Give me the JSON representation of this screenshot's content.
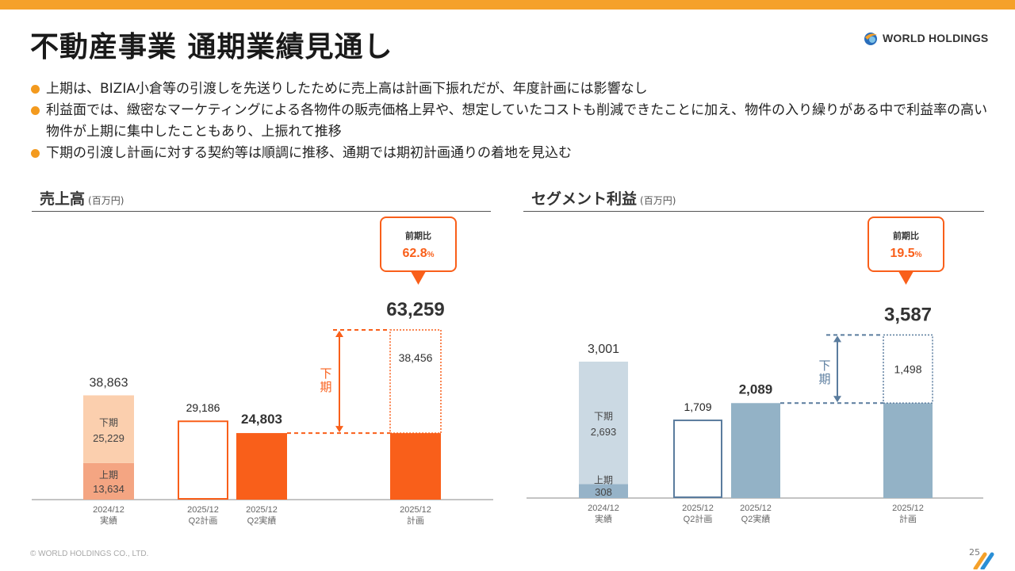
{
  "page": {
    "title": "不動産事業 通期業績見通し",
    "logo_text": "WORLD HOLDINGS",
    "footer": "© WORLD HOLDINGS CO., LTD.",
    "page_number": "25",
    "accent_color": "#f5a12a",
    "bullets": [
      "上期は、BIZIA小倉等の引渡しを先送りしたために売上高は計画下振れだが、年度計画には影響なし",
      "利益面では、緻密なマーケティングによる各物件の販売価格上昇や、想定していたコストも削減できたことに加え、物件の入り繰りがある中で利益率の高い物件が上期に集中したこともあり、上振れて推移",
      "下期の引渡し計画に対する契約等は順調に推移、通期では期初計画通りの着地を見込む"
    ]
  },
  "chart_data": [
    {
      "type": "bar",
      "title": "売上高",
      "unit": "(百万円)",
      "categories": [
        "2024/12\n実績",
        "2025/12\nQ2計画",
        "2025/12\nQ2実績",
        "2025/12\n計画"
      ],
      "segment_labels": {
        "h1": "上期",
        "h2": "下期"
      },
      "bars": [
        {
          "total": "38,863",
          "h1": 13634,
          "h1_label": "13,634",
          "h2": 25229,
          "h2_label": "25,229",
          "style": "stacked-orange"
        },
        {
          "total": "29,186",
          "value": 29186,
          "style": "outline"
        },
        {
          "total": "24,803",
          "value": 24803,
          "style": "solid"
        },
        {
          "total": "63,259",
          "h1": 24803,
          "h2": 38456,
          "h2_label": "38,456",
          "style": "plan"
        }
      ],
      "bracket_label": "下\n期",
      "callout": {
        "label": "前期比",
        "value": "62.8",
        "suffix": "%"
      },
      "colors": {
        "h1": "#f4a582",
        "h2": "#fbcfae",
        "solid": "#f95f1a",
        "accent": "#f95f1a"
      }
    },
    {
      "type": "bar",
      "title": "セグメント利益",
      "unit": "(百万円)",
      "categories": [
        "2024/12\n実績",
        "2025/12\nQ2計画",
        "2025/12\nQ2実績",
        "2025/12\n計画"
      ],
      "segment_labels": {
        "h1": "上期",
        "h2": "下期"
      },
      "bars": [
        {
          "total": "3,001",
          "h1": 308,
          "h1_label": "308",
          "h2": 2693,
          "h2_label": "2,693",
          "style": "stacked-blue"
        },
        {
          "total": "1,709",
          "value": 1709,
          "style": "outline"
        },
        {
          "total": "2,089",
          "value": 2089,
          "style": "solid"
        },
        {
          "total": "3,587",
          "h1": 2089,
          "h2": 1498,
          "h2_label": "1,498",
          "style": "plan"
        }
      ],
      "bracket_label": "下\n期",
      "callout": {
        "label": "前期比",
        "value": "19.5",
        "suffix": "%"
      },
      "colors": {
        "h1": "#96b3c8",
        "h2": "#cbd9e3",
        "solid": "#93b2c6",
        "accent": "#5a7c9e"
      }
    }
  ]
}
